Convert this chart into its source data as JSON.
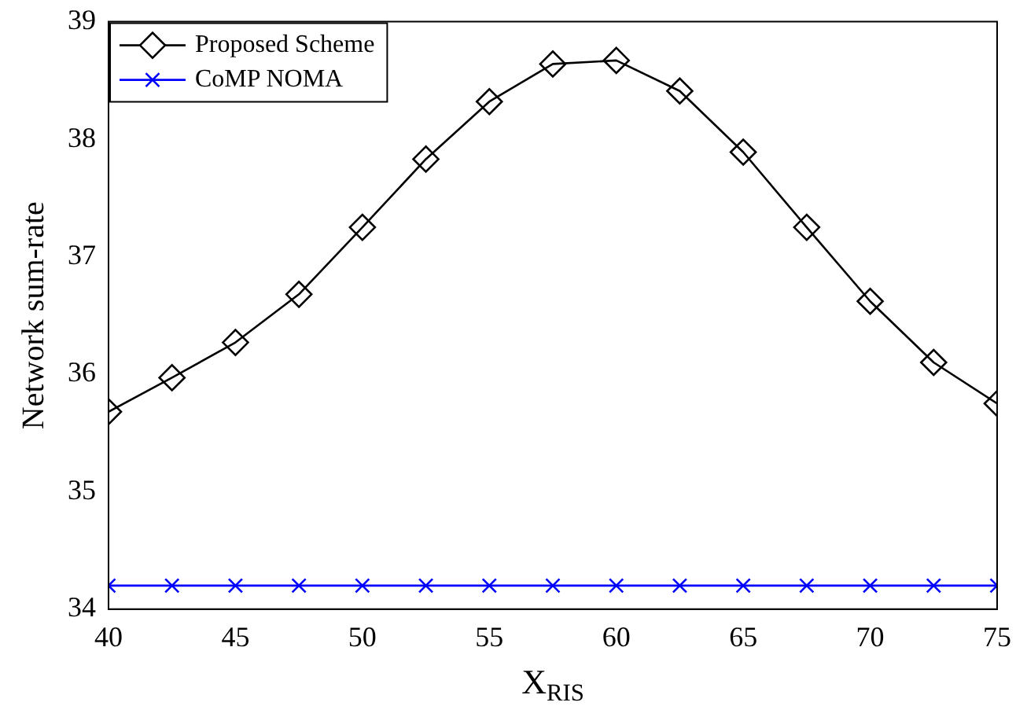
{
  "chart_data": {
    "type": "line",
    "xlabel": "X$_{RIS}$",
    "ylabel": "Network sum-rate",
    "x": [
      40,
      42.5,
      45,
      47.5,
      50,
      52.5,
      55,
      57.5,
      60,
      62.5,
      65,
      67.5,
      70,
      72.5,
      75
    ],
    "series": [
      {
        "name": "Proposed Scheme",
        "color": "#000000",
        "marker": "diamond",
        "values": [
          35.68,
          35.97,
          36.27,
          36.68,
          37.25,
          37.83,
          38.32,
          38.64,
          38.67,
          38.41,
          37.89,
          37.25,
          36.62,
          36.1,
          35.75
        ]
      },
      {
        "name": "CoMP NOMA",
        "color": "#0000ff",
        "marker": "cross",
        "values": [
          34.2,
          34.2,
          34.2,
          34.2,
          34.2,
          34.2,
          34.2,
          34.2,
          34.2,
          34.2,
          34.2,
          34.2,
          34.2,
          34.2,
          34.2
        ]
      }
    ],
    "xlim": [
      40,
      75
    ],
    "xticks": [
      40,
      45,
      50,
      55,
      60,
      65,
      70,
      75
    ],
    "ylim": [
      34,
      39
    ],
    "yticks": [
      34,
      35,
      36,
      37,
      38,
      39
    ],
    "grid": false,
    "legend": "top left",
    "line_style": "solid"
  }
}
